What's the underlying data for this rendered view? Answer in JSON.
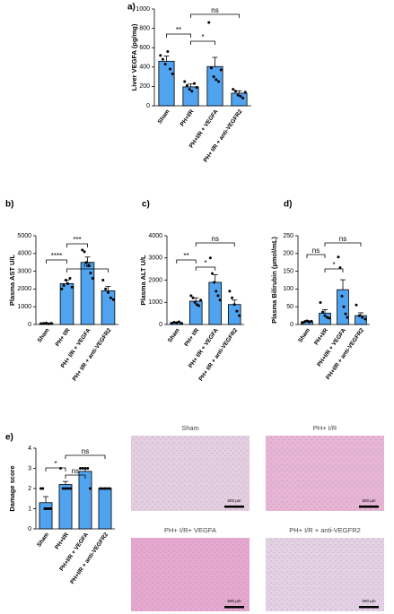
{
  "chart_data": [
    {
      "type": "bar",
      "label": "a)",
      "ylabel": "Liver VEGFA (pg/mg)",
      "categories": [
        "Sham",
        "PH+I/R",
        "PH+I/R + VEGFA",
        "PH+ I/R + anti-VEGFR2"
      ],
      "values": [
        460,
        195,
        405,
        130
      ],
      "errors": [
        55,
        30,
        95,
        25
      ],
      "points": [
        [
          520,
          480,
          430,
          560,
          380,
          330
        ],
        [
          250,
          210,
          170,
          150,
          230,
          190
        ],
        [
          860,
          390,
          300,
          270,
          250,
          370
        ],
        [
          170,
          150,
          110,
          100,
          80,
          140
        ]
      ],
      "color": "#4fa3ef",
      "ylim": [
        0,
        1000
      ],
      "yticks": [
        0,
        200,
        400,
        600,
        800,
        1000
      ],
      "annotations": [
        {
          "text": "**",
          "from": 0,
          "to": 1
        },
        {
          "text": "*",
          "from": 1,
          "to": 2
        },
        {
          "text": "ns",
          "from": 1,
          "to": 3
        }
      ]
    },
    {
      "type": "bar",
      "label": "b)",
      "ylabel": "Plasma AST U/L",
      "categories": [
        "Sham",
        "PH+ I/R",
        "PH+ I/R + VEGFA",
        "PH+ I/R + anti-VEGFR2"
      ],
      "values": [
        60,
        2300,
        3500,
        1900
      ],
      "errors": [
        20,
        200,
        300,
        250
      ],
      "points": [
        [
          50,
          60,
          80,
          40,
          70
        ],
        [
          2000,
          2200,
          2500,
          2300,
          2600,
          2100
        ],
        [
          4200,
          4100,
          3500,
          3300,
          2900,
          2600
        ],
        [
          2500,
          2000,
          1800,
          1500,
          1400
        ]
      ],
      "color": "#4fa3ef",
      "ylim": [
        0,
        5000
      ],
      "yticks": [
        0,
        1000,
        2000,
        3000,
        4000,
        5000
      ],
      "annotations": [
        {
          "text": "****",
          "from": 0,
          "to": 1
        },
        {
          "text": "***",
          "from": 1,
          "to": 2
        },
        {
          "text": "ns",
          "from": 1,
          "to": 3
        }
      ]
    },
    {
      "type": "bar",
      "label": "c)",
      "ylabel": "Plasma ALT U/L",
      "categories": [
        "Sham",
        "PH+ I/R",
        "PH+ I/R + VEGFA",
        "PH+ I/R + anti-VEGFR2"
      ],
      "values": [
        80,
        1050,
        1900,
        900
      ],
      "errors": [
        20,
        150,
        350,
        200
      ],
      "points": [
        [
          60,
          100,
          80,
          120,
          50
        ],
        [
          1300,
          1200,
          1000,
          900,
          850,
          1100
        ],
        [
          3000,
          2300,
          1900,
          1500,
          1300,
          1100
        ],
        [
          1500,
          1200,
          900,
          600,
          400
        ]
      ],
      "color": "#4fa3ef",
      "ylim": [
        0,
        4000
      ],
      "yticks": [
        0,
        1000,
        2000,
        3000,
        4000
      ],
      "annotations": [
        {
          "text": "**",
          "from": 0,
          "to": 1
        },
        {
          "text": "*",
          "from": 1,
          "to": 2
        },
        {
          "text": "ns",
          "from": 1,
          "to": 3
        }
      ]
    },
    {
      "type": "bar",
      "label": "d)",
      "ylabel": "Plasma Bilirubin (µmol/mL)",
      "categories": [
        "Sham",
        "PH+I/R",
        "PH+I/R + VEGFA",
        "PH+I/R + anti-VEGFR2"
      ],
      "values": [
        8,
        32,
        98,
        25
      ],
      "errors": [
        3,
        10,
        28,
        8
      ],
      "points": [
        [
          5,
          8,
          10,
          7,
          9
        ],
        [
          62,
          35,
          25,
          20,
          18
        ],
        [
          190,
          160,
          80,
          50,
          30,
          20
        ],
        [
          55,
          25,
          20,
          15
        ]
      ],
      "color": "#4fa3ef",
      "ylim": [
        0,
        250
      ],
      "yticks": [
        0,
        50,
        100,
        150,
        200,
        250
      ],
      "annotations": [
        {
          "text": "ns",
          "from": 0,
          "to": 1
        },
        {
          "text": "*",
          "from": 1,
          "to": 2
        },
        {
          "text": "ns",
          "from": 1,
          "to": 3
        }
      ]
    },
    {
      "type": "bar",
      "label": "e)",
      "ylabel": "Damage score",
      "categories": [
        "Sham",
        "PH+I/R",
        "PH+I/R + VEGFA",
        "PH+I/R + anti-VEGFR2"
      ],
      "values": [
        1.3,
        2.2,
        2.85,
        2
      ],
      "errors": [
        0.3,
        0.15,
        0.15,
        0
      ],
      "points": [
        [
          2,
          2,
          1,
          1,
          1,
          1
        ],
        [
          3,
          2,
          2,
          2,
          2
        ],
        [
          3,
          3,
          3,
          3,
          2
        ],
        [
          2,
          2,
          2,
          2,
          2
        ]
      ],
      "color": "#4fa3ef",
      "ylim": [
        0,
        4
      ],
      "yticks": [
        0,
        1,
        2,
        3,
        4
      ],
      "annotations": [
        {
          "text": "*",
          "from": 0,
          "to": 1
        },
        {
          "text": "ns",
          "from": 1,
          "to": 2
        },
        {
          "text": "ns",
          "from": 1,
          "to": 3
        }
      ]
    }
  ],
  "micrographs": [
    {
      "title": "Sham",
      "scale": "500 µm"
    },
    {
      "title": "PH+ I/R",
      "scale": "500 µm"
    },
    {
      "title": "PH+ I/R+ VEGFA",
      "scale": "500 µm"
    },
    {
      "title": "PH+ I/R + anti-VEGFR2",
      "scale": "500 µm"
    }
  ]
}
